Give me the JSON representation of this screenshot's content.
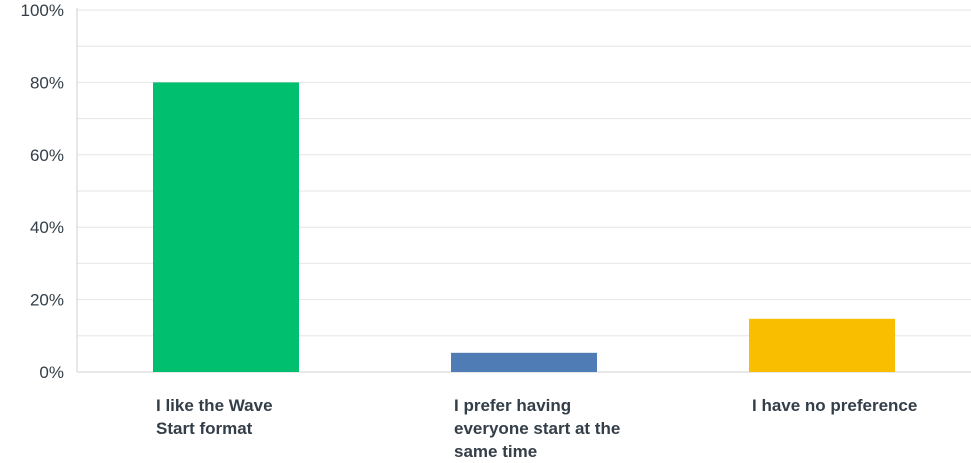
{
  "chart_data": {
    "type": "bar",
    "title": "",
    "xlabel": "",
    "ylabel": "",
    "categories": [
      "I like the Wave Start format",
      "I prefer having everyone start at the same time",
      "I have no preference"
    ],
    "category_lines": [
      [
        "I like the Wave",
        "Start format"
      ],
      [
        "I prefer having",
        "everyone start at the",
        "same time"
      ],
      [
        "I have no preference"
      ]
    ],
    "values": [
      80.0,
      5.3,
      14.7
    ],
    "value_unit": "%",
    "ylim": [
      0,
      100
    ],
    "yticks": [
      0,
      20,
      40,
      60,
      80,
      100
    ],
    "ytick_labels": [
      "0%",
      "20%",
      "40%",
      "60%",
      "80%",
      "100%"
    ],
    "minor_gridlines": true,
    "grid": true,
    "legend": "none",
    "colors": [
      "#00bf6f",
      "#507cb6",
      "#f9be00"
    ],
    "grid_color": "#e6e6e6",
    "axis_color": "#d0d0d0",
    "text_color": "#333e48"
  }
}
